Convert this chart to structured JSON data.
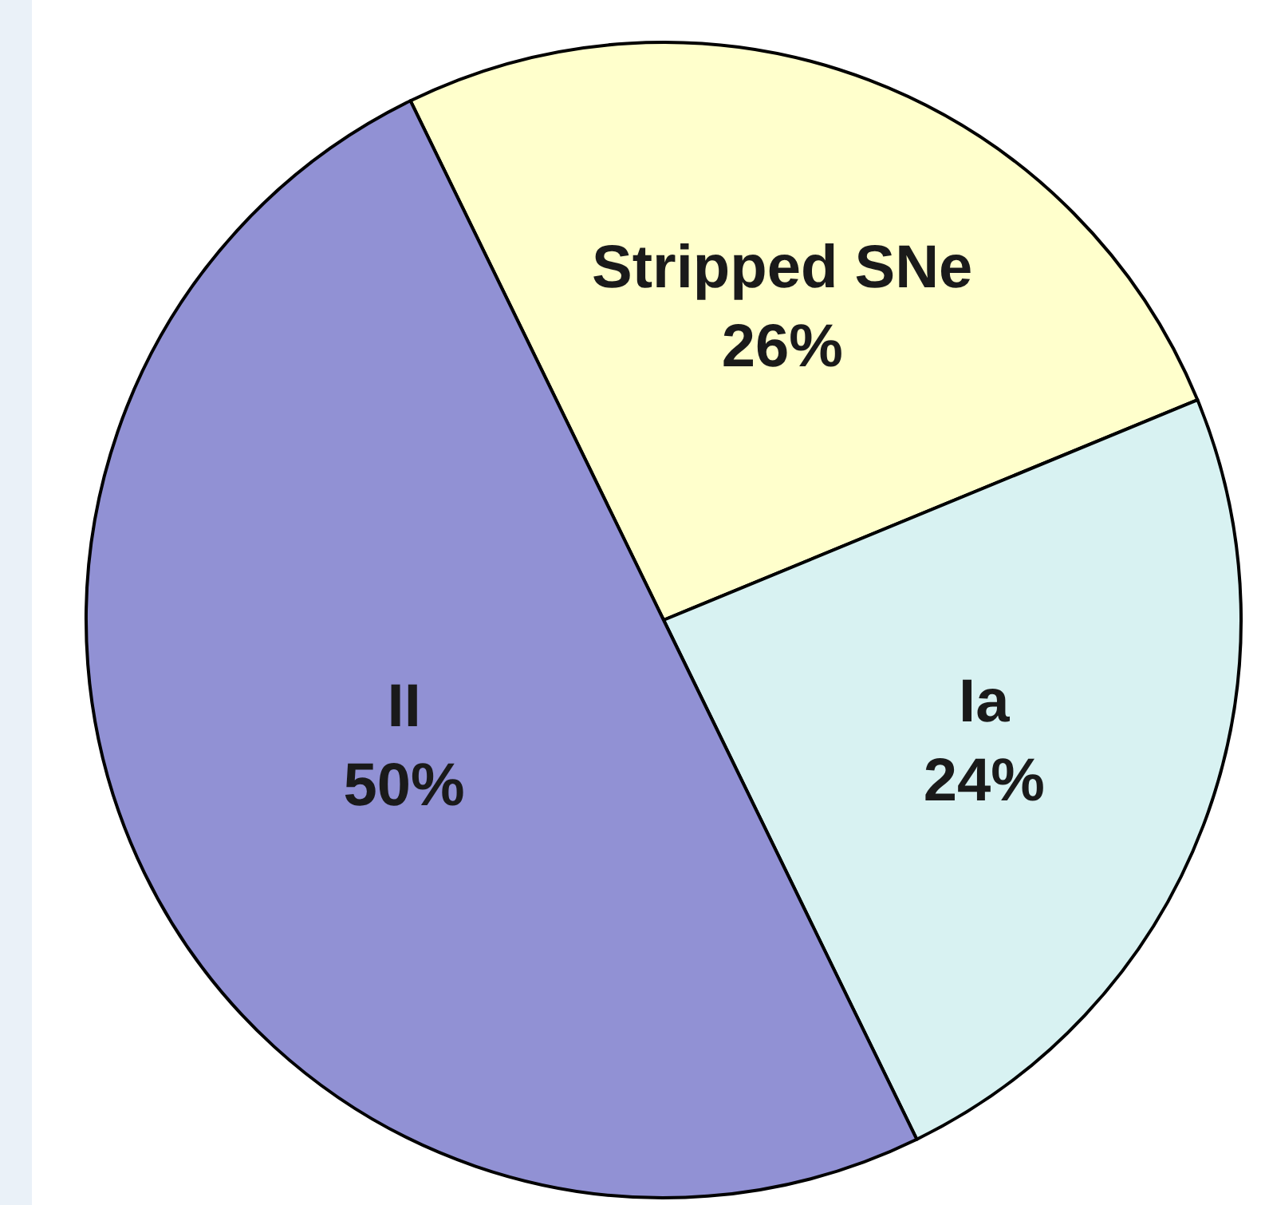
{
  "chart_data": {
    "type": "pie",
    "categories": [
      "Stripped SNe",
      "Ia",
      "II"
    ],
    "values": [
      26,
      24,
      50
    ],
    "colors": [
      "#ffffcc",
      "#d8f2f2",
      "#9191d4"
    ],
    "value_labels": [
      "26%",
      "24%",
      "50%"
    ],
    "legend": false
  }
}
